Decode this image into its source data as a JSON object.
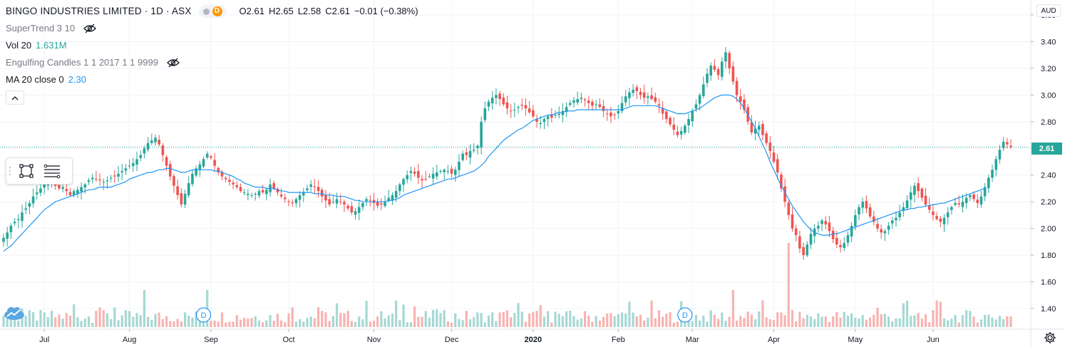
{
  "header": {
    "symbol_title": "BINGO INDUSTRIES LIMITED · 1D · ASX",
    "status_badge": "D",
    "ohlc": {
      "open_label": "O",
      "open": "2.61",
      "high_label": "H",
      "high": "2.65",
      "low_label": "L",
      "low": "2.58",
      "close_label": "C",
      "close": "2.61",
      "change": "−0.01 (−0.38%)"
    }
  },
  "indicators": [
    {
      "name": "SuperTrend 3 10",
      "value": "",
      "hidden_icon": "eye-crossed-icon"
    },
    {
      "name": "Vol 20",
      "value": "1.631M"
    },
    {
      "name": "Engulfing Candles 1 1 2017 1 1 9999",
      "value": "",
      "hidden_icon": "eye-crossed-icon"
    },
    {
      "name": "MA 20 close 0",
      "value": "2.30"
    }
  ],
  "axis": {
    "currency": "AUD",
    "last_price_tag": "2.61"
  },
  "event_markers": [
    {
      "label": "D",
      "date": "2019-08-29"
    },
    {
      "label": "D",
      "date": "2020-02-27"
    }
  ],
  "colors": {
    "up": "#26a69a",
    "down": "#ef5350",
    "ma": "#2196f3",
    "grid": "#f0f3fa",
    "vol_up": "#a6d8d3",
    "vol_down": "#f7b3b1"
  },
  "chart_data": {
    "type": "candlestick",
    "title": "BINGO INDUSTRIES LIMITED · 1D · ASX",
    "ylabel": "AUD",
    "ylim": [
      1.31,
      3.51
    ],
    "y_ticks": [
      "3.60",
      "3.40",
      "3.20",
      "3.00",
      "2.80",
      "2.60",
      "2.40",
      "2.20",
      "2.00",
      "1.80",
      "1.60",
      "1.40"
    ],
    "x_ticks": [
      "Jul",
      "Aug",
      "Sep",
      "Oct",
      "Nov",
      "Dec",
      "2020",
      "Feb",
      "Mar",
      "Apr",
      "May",
      "Jun"
    ],
    "grid": true,
    "start_date": "2019-06-14",
    "closes": [
      1.93,
      1.97,
      2.02,
      2.05,
      2.07,
      2.12,
      2.15,
      2.19,
      2.24,
      2.27,
      2.3,
      2.33,
      2.34,
      2.35,
      2.32,
      2.3,
      2.31,
      2.28,
      2.25,
      2.28,
      2.29,
      2.31,
      2.33,
      2.36,
      2.38,
      2.37,
      2.36,
      2.35,
      2.36,
      2.38,
      2.39,
      2.41,
      2.43,
      2.45,
      2.47,
      2.49,
      2.52,
      2.55,
      2.6,
      2.64,
      2.66,
      2.68,
      2.63,
      2.55,
      2.47,
      2.39,
      2.32,
      2.25,
      2.18,
      2.26,
      2.34,
      2.41,
      2.45,
      2.48,
      2.52,
      2.56,
      2.53,
      2.47,
      2.42,
      2.39,
      2.37,
      2.35,
      2.33,
      2.31,
      2.28,
      2.27,
      2.26,
      2.25,
      2.26,
      2.28,
      2.27,
      2.29,
      2.33,
      2.3,
      2.27,
      2.24,
      2.22,
      2.2,
      2.19,
      2.22,
      2.25,
      2.27,
      2.3,
      2.33,
      2.31,
      2.28,
      2.24,
      2.21,
      2.18,
      2.2,
      2.22,
      2.2,
      2.18,
      2.15,
      2.12,
      2.13,
      2.16,
      2.19,
      2.22,
      2.21,
      2.19,
      2.17,
      2.18,
      2.2,
      2.23,
      2.25,
      2.28,
      2.33,
      2.37,
      2.4,
      2.43,
      2.41,
      2.38,
      2.36,
      2.37,
      2.39,
      2.41,
      2.42,
      2.43,
      2.44,
      2.43,
      2.41,
      2.44,
      2.5,
      2.56,
      2.55,
      2.58,
      2.59,
      2.62,
      2.8,
      2.9,
      2.95,
      2.98,
      3.0,
      2.97,
      2.93,
      2.9,
      2.88,
      2.89,
      2.91,
      2.92,
      2.9,
      2.87,
      2.84,
      2.8,
      2.79,
      2.82,
      2.84,
      2.83,
      2.85,
      2.86,
      2.88,
      2.91,
      2.94,
      2.96,
      2.97,
      2.98,
      2.96,
      2.94,
      2.92,
      2.93,
      2.91,
      2.88,
      2.86,
      2.84,
      2.85,
      2.88,
      2.94,
      2.99,
      3.02,
      3.04,
      3.03,
      3.0,
      2.98,
      2.99,
      2.97,
      2.95,
      2.92,
      2.86,
      2.82,
      2.78,
      2.74,
      2.7,
      2.73,
      2.77,
      2.82,
      2.88,
      2.93,
      3.0,
      3.08,
      3.16,
      3.22,
      3.19,
      3.15,
      3.25,
      3.32,
      3.2,
      3.1,
      3.0,
      2.95,
      2.89,
      2.8,
      2.72,
      2.75,
      2.77,
      2.7,
      2.64,
      2.58,
      2.5,
      2.42,
      2.3,
      2.2,
      2.1,
      2.0,
      1.95,
      1.85,
      1.8,
      1.88,
      1.96,
      2.0,
      2.02,
      2.06,
      2.03,
      1.98,
      1.92,
      1.88,
      1.86,
      1.89,
      1.95,
      2.02,
      2.1,
      2.16,
      2.2,
      2.15,
      2.09,
      2.05,
      2.0,
      1.97,
      1.98,
      2.02,
      2.06,
      2.08,
      2.12,
      2.16,
      2.21,
      2.27,
      2.32,
      2.28,
      2.23,
      2.18,
      2.14,
      2.1,
      2.07,
      2.05,
      2.08,
      2.12,
      2.16,
      2.19,
      2.18,
      2.2,
      2.23,
      2.25,
      2.22,
      2.19,
      2.24,
      2.31,
      2.38,
      2.44,
      2.52,
      2.59,
      2.65,
      2.63,
      2.61
    ],
    "ma20": [
      1.83,
      1.85,
      1.87,
      1.9,
      1.93,
      1.96,
      1.99,
      2.02,
      2.05,
      2.08,
      2.11,
      2.14,
      2.16,
      2.18,
      2.2,
      2.21,
      2.22,
      2.23,
      2.24,
      2.25,
      2.26,
      2.27,
      2.28,
      2.29,
      2.29,
      2.3,
      2.31,
      2.31,
      2.31,
      2.31,
      2.32,
      2.33,
      2.34,
      2.35,
      2.37,
      2.38,
      2.39,
      2.4,
      2.41,
      2.42,
      2.42,
      2.43,
      2.44,
      2.44,
      2.45,
      2.45,
      2.44,
      2.43,
      2.42,
      2.42,
      2.43,
      2.44,
      2.44,
      2.44,
      2.44,
      2.44,
      2.44,
      2.43,
      2.43,
      2.42,
      2.41,
      2.4,
      2.39,
      2.37,
      2.36,
      2.34,
      2.33,
      2.32,
      2.31,
      2.31,
      2.31,
      2.3,
      2.3,
      2.3,
      2.29,
      2.28,
      2.28,
      2.27,
      2.27,
      2.27,
      2.27,
      2.27,
      2.27,
      2.27,
      2.26,
      2.26,
      2.26,
      2.25,
      2.25,
      2.25,
      2.24,
      2.24,
      2.24,
      2.23,
      2.22,
      2.21,
      2.21,
      2.2,
      2.2,
      2.2,
      2.2,
      2.2,
      2.2,
      2.2,
      2.21,
      2.21,
      2.22,
      2.23,
      2.25,
      2.26,
      2.27,
      2.28,
      2.29,
      2.3,
      2.31,
      2.32,
      2.33,
      2.34,
      2.35,
      2.36,
      2.37,
      2.37,
      2.38,
      2.39,
      2.4,
      2.41,
      2.42,
      2.43,
      2.45,
      2.47,
      2.5,
      2.54,
      2.57,
      2.6,
      2.63,
      2.66,
      2.68,
      2.7,
      2.72,
      2.74,
      2.75,
      2.77,
      2.79,
      2.81,
      2.82,
      2.83,
      2.84,
      2.85,
      2.85,
      2.86,
      2.87,
      2.87,
      2.88,
      2.88,
      2.88,
      2.89,
      2.89,
      2.89,
      2.89,
      2.89,
      2.89,
      2.89,
      2.89,
      2.89,
      2.89,
      2.89,
      2.89,
      2.89,
      2.9,
      2.91,
      2.92,
      2.92,
      2.92,
      2.92,
      2.92,
      2.92,
      2.92,
      2.91,
      2.9,
      2.89,
      2.88,
      2.87,
      2.86,
      2.86,
      2.86,
      2.87,
      2.88,
      2.89,
      2.9,
      2.92,
      2.94,
      2.96,
      2.98,
      2.99,
      3.0,
      3.0,
      3.0,
      2.99,
      2.97,
      2.94,
      2.9,
      2.85,
      2.8,
      2.75,
      2.69,
      2.63,
      2.57,
      2.5,
      2.44,
      2.38,
      2.32,
      2.27,
      2.22,
      2.17,
      2.13,
      2.09,
      2.05,
      2.02,
      1.99,
      1.97,
      1.96,
      1.95,
      1.95,
      1.95,
      1.96,
      1.96,
      1.97,
      1.98,
      1.99,
      2.0,
      2.01,
      2.02,
      2.03,
      2.04,
      2.05,
      2.06,
      2.07,
      2.08,
      2.09,
      2.1,
      2.11,
      2.12,
      2.13,
      2.14,
      2.14,
      2.15,
      2.15,
      2.16,
      2.16,
      2.17,
      2.17,
      2.18,
      2.18,
      2.19,
      2.19,
      2.2,
      2.21,
      2.22,
      2.23,
      2.24,
      2.25,
      2.26,
      2.27,
      2.28,
      2.29,
      2.3
    ]
  }
}
